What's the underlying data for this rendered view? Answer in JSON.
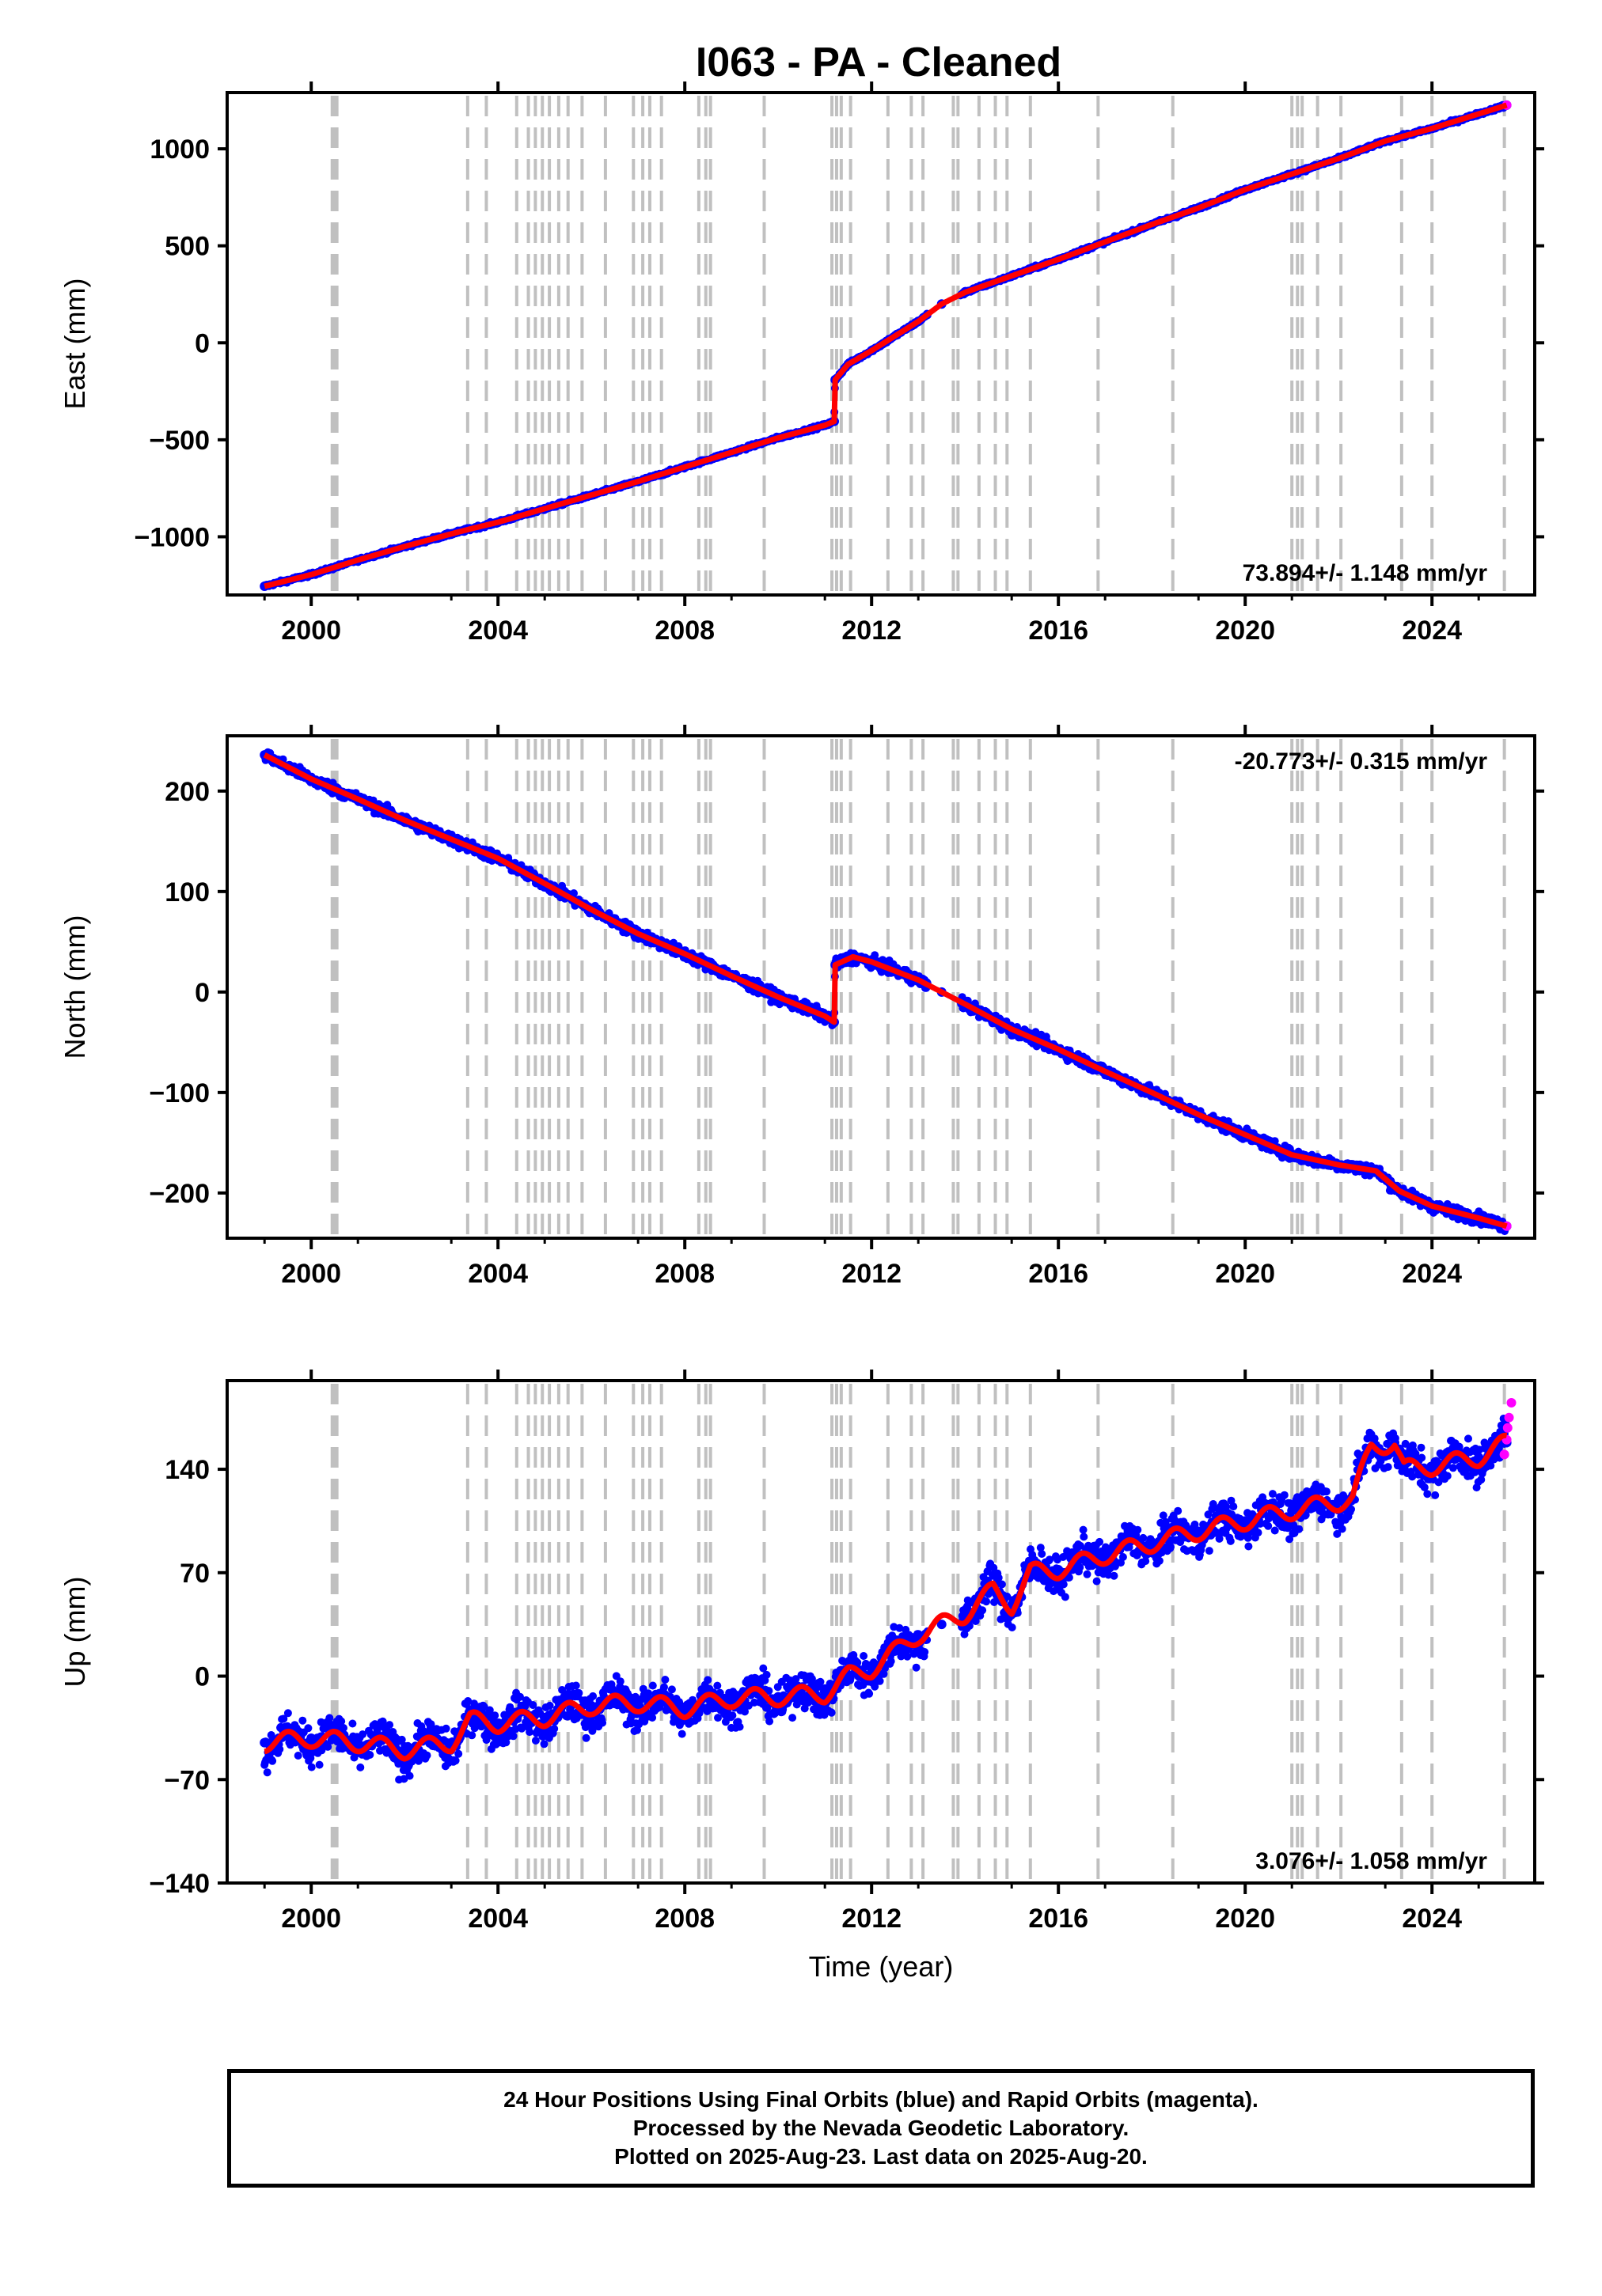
{
  "title": "I063  - PA - Cleaned",
  "chart_data": [
    {
      "type": "scatter",
      "panel": "east",
      "ylabel": "East (mm)",
      "xlabel": "",
      "xlim": [
        1998.2,
        2026.2
      ],
      "ylim": [
        -1300,
        1290
      ],
      "yticks": [
        -1000,
        -500,
        0,
        500,
        1000
      ],
      "ytick_labels": [
        "−1000",
        "−500",
        "0",
        "500",
        "1000"
      ],
      "xticks": [
        2000,
        2004,
        2008,
        2012,
        2016,
        2020,
        2024
      ],
      "xtick_labels": [
        "2000",
        "2004",
        "2008",
        "2012",
        "2016",
        "2020",
        "2024"
      ],
      "rate_label": "73.894+/- 1.148 mm/yr",
      "rate_label_position": "bottom-right",
      "grid": false,
      "series": [
        {
          "name": "Final Orbits",
          "color": "#0000ff",
          "x": [
            1999.0,
            2000.0,
            2001.0,
            2002.0,
            2003.0,
            2003.4,
            2004.0,
            2005.0,
            2006.0,
            2007.0,
            2008.0,
            2009.0,
            2010.0,
            2011.0,
            2011.2,
            2011.22,
            2011.5,
            2012.0,
            2013.0,
            2013.5,
            2014.0,
            2015.0,
            2016.0,
            2017.0,
            2018.0,
            2019.0,
            2020.0,
            2021.0,
            2022.0,
            2023.0,
            2024.0,
            2025.0,
            2025.6
          ],
          "y": [
            -1255,
            -1195,
            -1120,
            -1050,
            -985,
            -960,
            -925,
            -855,
            -785,
            -715,
            -640,
            -565,
            -490,
            -425,
            -405,
            -190,
            -110,
            -40,
            110,
            200,
            260,
            345,
            430,
            520,
            610,
            695,
            790,
            870,
            950,
            1040,
            1105,
            1180,
            1225
          ]
        },
        {
          "name": "Rapid Orbits",
          "color": "#ff00ff",
          "x": [
            2025.6
          ],
          "y": [
            1225
          ]
        },
        {
          "name": "Model",
          "color": "#ff0000",
          "x": [
            1999.0,
            2000.0,
            2001.0,
            2002.0,
            2003.0,
            2003.4,
            2004.0,
            2005.0,
            2006.0,
            2007.0,
            2008.0,
            2009.0,
            2010.0,
            2011.0,
            2011.2,
            2011.22,
            2011.5,
            2012.0,
            2013.0,
            2013.5,
            2014.0,
            2015.0,
            2016.0,
            2017.0,
            2018.0,
            2019.0,
            2020.0,
            2021.0,
            2022.0,
            2023.0,
            2024.0,
            2025.0,
            2025.6
          ],
          "y": [
            -1255,
            -1195,
            -1120,
            -1050,
            -985,
            -960,
            -925,
            -855,
            -785,
            -715,
            -640,
            -565,
            -490,
            -425,
            -405,
            -190,
            -110,
            -40,
            110,
            200,
            260,
            345,
            430,
            520,
            610,
            695,
            790,
            870,
            950,
            1040,
            1105,
            1180,
            1225
          ]
        }
      ]
    },
    {
      "type": "scatter",
      "panel": "north",
      "ylabel": "North (mm)",
      "xlabel": "",
      "xlim": [
        1998.2,
        2026.2
      ],
      "ylim": [
        -245,
        255
      ],
      "yticks": [
        -200,
        -100,
        0,
        100,
        200
      ],
      "ytick_labels": [
        "−200",
        "−100",
        "0",
        "100",
        "200"
      ],
      "xticks": [
        2000,
        2004,
        2008,
        2012,
        2016,
        2020,
        2024
      ],
      "xtick_labels": [
        "2000",
        "2004",
        "2008",
        "2012",
        "2016",
        "2020",
        "2024"
      ],
      "rate_label": "-20.773+/- 0.315 mm/yr",
      "rate_label_position": "top-right",
      "grid": false,
      "series": [
        {
          "name": "Final Orbits",
          "color": "#0000ff",
          "x": [
            1999.0,
            2000.0,
            2001.0,
            2002.0,
            2003.0,
            2004.0,
            2005.0,
            2006.0,
            2007.0,
            2008.0,
            2009.0,
            2010.0,
            2011.0,
            2011.2,
            2011.22,
            2011.6,
            2012.0,
            2013.0,
            2013.5,
            2014.0,
            2015.0,
            2016.0,
            2017.0,
            2018.0,
            2019.0,
            2020.0,
            2021.0,
            2022.0,
            2022.8,
            2023.3,
            2024.0,
            2025.0,
            2025.6
          ],
          "y": [
            236,
            212,
            192,
            171,
            152,
            133,
            108,
            82,
            58,
            38,
            16,
            -5,
            -24,
            -30,
            27,
            35,
            30,
            12,
            0,
            -12,
            -37,
            -57,
            -79,
            -100,
            -122,
            -142,
            -162,
            -172,
            -178,
            -198,
            -213,
            -225,
            -233
          ]
        },
        {
          "name": "Rapid Orbits",
          "color": "#ff00ff",
          "x": [
            2025.6
          ],
          "y": [
            -233
          ]
        },
        {
          "name": "Model",
          "color": "#ff0000",
          "x": [
            1999.0,
            2000.0,
            2001.0,
            2002.0,
            2003.0,
            2004.0,
            2005.0,
            2006.0,
            2007.0,
            2008.0,
            2009.0,
            2010.0,
            2011.0,
            2011.2,
            2011.22,
            2011.6,
            2012.0,
            2013.0,
            2013.5,
            2014.0,
            2015.0,
            2016.0,
            2017.0,
            2018.0,
            2019.0,
            2020.0,
            2021.0,
            2022.0,
            2022.8,
            2023.3,
            2024.0,
            2025.0,
            2025.6
          ],
          "y": [
            236,
            212,
            192,
            171,
            152,
            133,
            108,
            82,
            58,
            38,
            16,
            -5,
            -24,
            -30,
            27,
            35,
            30,
            12,
            0,
            -12,
            -37,
            -57,
            -79,
            -100,
            -122,
            -142,
            -162,
            -172,
            -178,
            -198,
            -213,
            -225,
            -233
          ]
        }
      ]
    },
    {
      "type": "scatter",
      "panel": "up",
      "ylabel": "Up (mm)",
      "xlabel": "Time (year)",
      "xlim": [
        1998.2,
        2026.2
      ],
      "ylim": [
        -140,
        200
      ],
      "yticks": [
        -140,
        -70,
        0,
        70,
        140
      ],
      "ytick_labels": [
        "−140",
        "−70",
        "0",
        "70",
        "140"
      ],
      "xticks": [
        2000,
        2004,
        2008,
        2012,
        2016,
        2020,
        2024
      ],
      "xtick_labels": [
        "2000",
        "2004",
        "2008",
        "2012",
        "2016",
        "2020",
        "2024"
      ],
      "rate_label": "3.076+/- 1.058 mm/yr",
      "rate_label_position": "bottom-right",
      "grid": false,
      "series": [
        {
          "name": "Final Orbits",
          "color": "#0000ff",
          "x": [
            1999.0,
            2000.0,
            2001.0,
            2002.0,
            2003.0,
            2003.4,
            2004.0,
            2005.0,
            2006.0,
            2007.0,
            2008.0,
            2009.0,
            2010.0,
            2011.0,
            2011.5,
            2012.0,
            2013.0,
            2013.5,
            2014.0,
            2014.6,
            2015.0,
            2015.4,
            2016.0,
            2017.0,
            2018.0,
            2019.0,
            2020.0,
            2021.0,
            2022.0,
            2022.3,
            2022.7,
            2023.2,
            2023.4,
            2024.0,
            2025.0,
            2025.6
          ],
          "y": [
            -45,
            -42,
            -45,
            -50,
            -45,
            -30,
            -32,
            -28,
            -20,
            -18,
            -22,
            -15,
            -14,
            -12,
            0,
            5,
            28,
            35,
            42,
            58,
            48,
            70,
            72,
            82,
            90,
            98,
            105,
            112,
            118,
            120,
            155,
            158,
            140,
            142,
            148,
            158
          ]
        },
        {
          "name": "Rapid Orbits",
          "color": "#ff00ff",
          "x": [
            2025.55,
            2025.6,
            2025.62,
            2025.65,
            2025.7
          ],
          "y": [
            150,
            160,
            168,
            175,
            185
          ]
        },
        {
          "name": "Model",
          "color": "#ff0000",
          "x": [
            1999.0,
            2000.0,
            2001.0,
            2002.0,
            2003.0,
            2003.4,
            2004.0,
            2005.0,
            2006.0,
            2007.0,
            2008.0,
            2009.0,
            2010.0,
            2011.0,
            2011.5,
            2012.0,
            2013.0,
            2013.5,
            2014.0,
            2014.6,
            2015.0,
            2015.4,
            2016.0,
            2017.0,
            2018.0,
            2019.0,
            2020.0,
            2021.0,
            2022.0,
            2022.3,
            2022.7,
            2023.2,
            2023.4,
            2024.0,
            2025.0,
            2025.6
          ],
          "y": [
            -45,
            -42,
            -45,
            -50,
            -45,
            -30,
            -32,
            -28,
            -20,
            -18,
            -22,
            -15,
            -14,
            -12,
            0,
            5,
            28,
            35,
            42,
            58,
            48,
            70,
            72,
            82,
            90,
            98,
            105,
            112,
            118,
            120,
            155,
            158,
            140,
            142,
            148,
            158
          ]
        }
      ]
    }
  ],
  "event_years": [
    2000.45,
    2000.5,
    2000.55,
    2003.35,
    2003.75,
    2004.4,
    2004.65,
    2004.8,
    2004.95,
    2005.1,
    2005.3,
    2005.5,
    2005.8,
    2006.3,
    2006.9,
    2007.1,
    2007.25,
    2007.5,
    2008.3,
    2008.45,
    2008.55,
    2009.7,
    2011.15,
    2011.25,
    2011.35,
    2011.55,
    2012.35,
    2012.85,
    2013.1,
    2013.75,
    2013.85,
    2014.3,
    2014.65,
    2014.9,
    2015.4,
    2016.85,
    2018.45,
    2021.0,
    2021.12,
    2021.22,
    2021.55,
    2022.05,
    2023.35,
    2024.0,
    2025.55
  ],
  "footer": {
    "line1": "24 Hour Positions Using Final Orbits (blue) and Rapid Orbits (magenta).",
    "line2": "Processed by the Nevada Geodetic Laboratory.",
    "line3": "Plotted on 2025-Aug-23. Last data on 2025-Aug-20."
  }
}
